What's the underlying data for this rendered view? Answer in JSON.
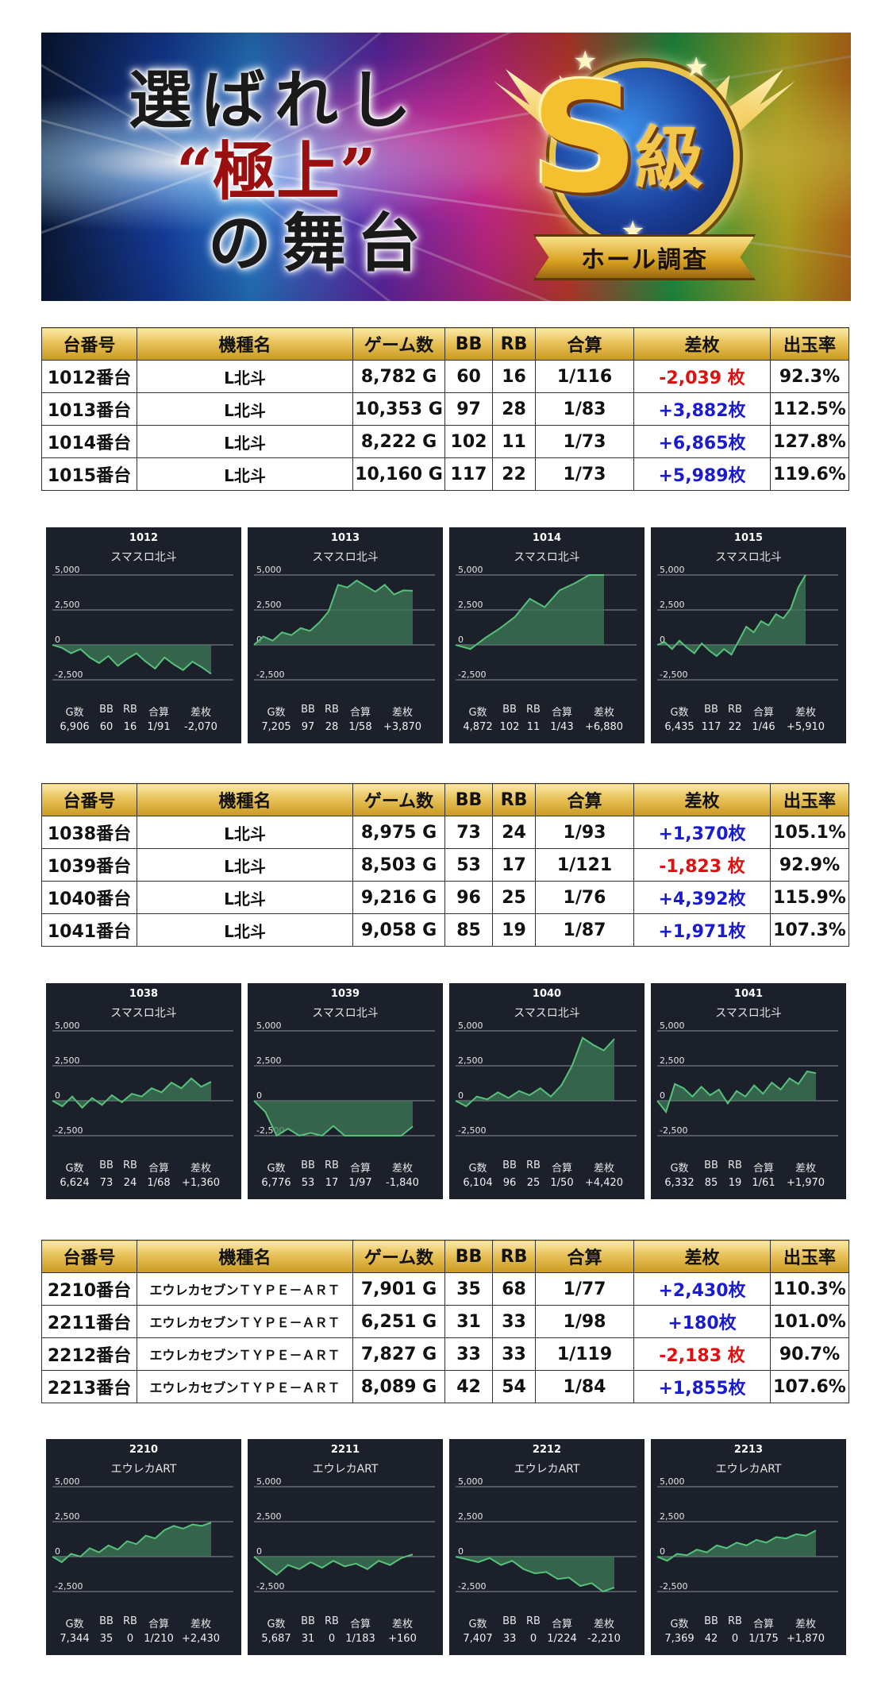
{
  "banner": {
    "line1": "選ばれし",
    "line2": "“極上”",
    "line3": "の舞台",
    "badge_letter": "S",
    "badge_kanji": "級",
    "ribbon": "ホール調査"
  },
  "table_headers": [
    "台番号",
    "機種名",
    "ゲーム数",
    "BB",
    "RB",
    "合算",
    "差枚",
    "出玉率"
  ],
  "chart_labels": [
    "G数",
    "BB",
    "RB",
    "合算",
    "差枚"
  ],
  "axis": {
    "ticks": [
      "5,000",
      "2,500",
      "0",
      "-2,500"
    ]
  },
  "groups": [
    {
      "rows": [
        {
          "no": "1012番台",
          "model": "L北斗",
          "games": "8,782 G",
          "bb": "60",
          "rb": "16",
          "combined": "1/116",
          "diff": "-2,039 枚",
          "sign": "neg",
          "rate": "92.3%"
        },
        {
          "no": "1013番台",
          "model": "L北斗",
          "games": "10,353 G",
          "bb": "97",
          "rb": "28",
          "combined": "1/83",
          "diff": "+3,882枚",
          "sign": "pos",
          "rate": "112.5%"
        },
        {
          "no": "1014番台",
          "model": "L北斗",
          "games": "8,222 G",
          "bb": "102",
          "rb": "11",
          "combined": "1/73",
          "diff": "+6,865枚",
          "sign": "pos",
          "rate": "127.8%"
        },
        {
          "no": "1015番台",
          "model": "L北斗",
          "games": "10,160 G",
          "bb": "117",
          "rb": "22",
          "combined": "1/73",
          "diff": "+5,989枚",
          "sign": "pos",
          "rate": "119.6%"
        }
      ],
      "charts": [
        {
          "id": "1012",
          "model": "スマスロ北斗",
          "g": "6,906",
          "bb": "60",
          "rb": "16",
          "combined": "1/91",
          "diff": "-2,070",
          "end": -2070,
          "shape": [
            0,
            -200,
            -600,
            -300,
            -900,
            -1300,
            -800,
            -1500,
            -1000,
            -600,
            -1200,
            -1700,
            -900,
            -1400,
            -1800,
            -1200,
            -1600,
            -2070
          ]
        },
        {
          "id": "1013",
          "model": "スマスロ北斗",
          "g": "7,205",
          "bb": "97",
          "rb": "28",
          "combined": "1/58",
          "diff": "+3,870",
          "end": 3870,
          "shape": [
            0,
            600,
            300,
            900,
            700,
            1200,
            1000,
            1600,
            2400,
            4300,
            4100,
            4600,
            4200,
            3800,
            4300,
            3600,
            3900,
            3870
          ]
        },
        {
          "id": "1014",
          "model": "スマスロ北斗",
          "g": "4,872",
          "bb": "102",
          "rb": "11",
          "combined": "1/43",
          "diff": "+6,880",
          "end": 6880,
          "shape": [
            0,
            -300,
            500,
            1200,
            2000,
            3300,
            2700,
            3900,
            4400,
            5300,
            6880
          ]
        },
        {
          "id": "1015",
          "model": "スマスロ北斗",
          "g": "6,435",
          "bb": "117",
          "rb": "22",
          "combined": "1/46",
          "diff": "+5,910",
          "end": 5910,
          "shape": [
            0,
            200,
            -300,
            300,
            -200,
            -600,
            100,
            -400,
            -800,
            -300,
            -700,
            300,
            1300,
            900,
            1700,
            1400,
            2200,
            1900,
            2600,
            4100,
            5910
          ]
        }
      ]
    },
    {
      "rows": [
        {
          "no": "1038番台",
          "model": "L北斗",
          "games": "8,975 G",
          "bb": "73",
          "rb": "24",
          "combined": "1/93",
          "diff": "+1,370枚",
          "sign": "pos",
          "rate": "105.1%"
        },
        {
          "no": "1039番台",
          "model": "L北斗",
          "games": "8,503 G",
          "bb": "53",
          "rb": "17",
          "combined": "1/121",
          "diff": "-1,823 枚",
          "sign": "neg",
          "rate": "92.9%"
        },
        {
          "no": "1040番台",
          "model": "L北斗",
          "games": "9,216 G",
          "bb": "96",
          "rb": "25",
          "combined": "1/76",
          "diff": "+4,392枚",
          "sign": "pos",
          "rate": "115.9%"
        },
        {
          "no": "1041番台",
          "model": "L北斗",
          "games": "9,058 G",
          "bb": "85",
          "rb": "19",
          "combined": "1/87",
          "diff": "+1,971枚",
          "sign": "pos",
          "rate": "107.3%"
        }
      ],
      "charts": [
        {
          "id": "1038",
          "model": "スマスロ北斗",
          "g": "6,624",
          "bb": "73",
          "rb": "24",
          "combined": "1/68",
          "diff": "+1,360",
          "end": 1360,
          "shape": [
            0,
            -400,
            300,
            -500,
            200,
            -300,
            400,
            -100,
            500,
            300,
            900,
            600,
            1300,
            900,
            1600,
            1000,
            1360
          ]
        },
        {
          "id": "1039",
          "model": "スマスロ北斗",
          "g": "6,776",
          "bb": "53",
          "rb": "17",
          "combined": "1/97",
          "diff": "-1,840",
          "end": -1840,
          "shape": [
            0,
            -800,
            -2500,
            -2000,
            -3000,
            -2300,
            -2800,
            -1800,
            -2500,
            -3200,
            -2600,
            -3300,
            -2900,
            -3400,
            -1840
          ]
        },
        {
          "id": "1040",
          "model": "スマスロ北斗",
          "g": "6,104",
          "bb": "96",
          "rb": "25",
          "combined": "1/50",
          "diff": "+4,420",
          "end": 4420,
          "shape": [
            0,
            -400,
            300,
            100,
            600,
            200,
            700,
            400,
            900,
            300,
            1100,
            2500,
            4500,
            4000,
            3600,
            4420
          ]
        },
        {
          "id": "1041",
          "model": "スマスロ北斗",
          "g": "6,332",
          "bb": "85",
          "rb": "19",
          "combined": "1/61",
          "diff": "+1,970",
          "end": 1970,
          "shape": [
            0,
            -800,
            1200,
            900,
            300,
            1000,
            400,
            800,
            -200,
            700,
            300,
            1100,
            500,
            1300,
            800,
            1600,
            1200,
            2100,
            1970
          ]
        }
      ]
    },
    {
      "rows": [
        {
          "no": "2210番台",
          "model": "エウレカセブンＴＹＰＥ－ＡＲＴ",
          "games": "7,901 G",
          "bb": "35",
          "rb": "68",
          "combined": "1/77",
          "diff": "+2,430枚",
          "sign": "pos",
          "rate": "110.3%"
        },
        {
          "no": "2211番台",
          "model": "エウレカセブンＴＹＰＥ－ＡＲＴ",
          "games": "6,251 G",
          "bb": "31",
          "rb": "33",
          "combined": "1/98",
          "diff": "+180枚",
          "sign": "pos",
          "rate": "101.0%"
        },
        {
          "no": "2212番台",
          "model": "エウレカセブンＴＹＰＥ－ＡＲＴ",
          "games": "7,827 G",
          "bb": "33",
          "rb": "33",
          "combined": "1/119",
          "diff": "-2,183 枚",
          "sign": "neg",
          "rate": "90.7%"
        },
        {
          "no": "2213番台",
          "model": "エウレカセブンＴＹＰＥ－ＡＲＴ",
          "games": "8,089 G",
          "bb": "42",
          "rb": "54",
          "combined": "1/84",
          "diff": "+1,855枚",
          "sign": "pos",
          "rate": "107.6%"
        }
      ],
      "charts": [
        {
          "id": "2210",
          "model": "エウレカART",
          "g": "7,344",
          "bb": "35",
          "rb": "0",
          "combined": "1/210",
          "diff": "+2,430",
          "end": 2430,
          "shape": [
            0,
            -400,
            200,
            0,
            600,
            300,
            800,
            500,
            1100,
            900,
            1500,
            1300,
            1900,
            2200,
            2000,
            2300,
            2200,
            2430
          ]
        },
        {
          "id": "2211",
          "model": "エウレカART",
          "g": "5,687",
          "bb": "31",
          "rb": "0",
          "combined": "1/183",
          "diff": "+160",
          "end": 160,
          "shape": [
            0,
            -700,
            -1300,
            -600,
            -900,
            -400,
            -800,
            -300,
            -700,
            -500,
            -900,
            -300,
            -600,
            -100,
            160
          ]
        },
        {
          "id": "2212",
          "model": "エウレカART",
          "g": "7,407",
          "bb": "33",
          "rb": "0",
          "combined": "1/224",
          "diff": "-2,210",
          "end": -2210,
          "shape": [
            0,
            -200,
            -400,
            -100,
            -600,
            -300,
            -900,
            -1200,
            -1100,
            -1600,
            -1500,
            -2100,
            -1900,
            -2500,
            -2210
          ]
        },
        {
          "id": "2213",
          "model": "エウレカART",
          "g": "7,369",
          "bb": "42",
          "rb": "0",
          "combined": "1/175",
          "diff": "+1,870",
          "end": 1870,
          "shape": [
            0,
            -300,
            200,
            100,
            500,
            300,
            800,
            600,
            1000,
            800,
            1200,
            1000,
            1400,
            1300,
            1600,
            1500,
            1870
          ]
        }
      ]
    }
  ],
  "colors": {
    "chart_bg": "#1c202b",
    "line": "#55c27a",
    "fill": "#3f7a58",
    "grid": "#8a8f9a",
    "pos": "#1a1ad0",
    "neg": "#e01010"
  }
}
